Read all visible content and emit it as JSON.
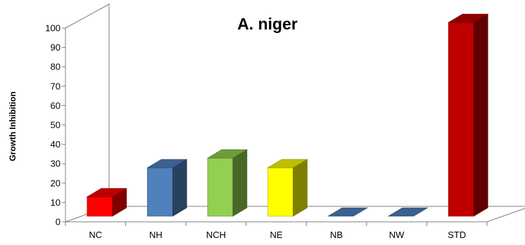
{
  "chart_data": {
    "type": "bar",
    "title": "A. niger",
    "xlabel": "",
    "ylabel": "Growth Inhibition",
    "categories": [
      "NC",
      "NH",
      "NCH",
      "NE",
      "NB",
      "NW",
      "STD"
    ],
    "series": [
      {
        "values": [
          10,
          25,
          30,
          25,
          0,
          0,
          100
        ]
      }
    ],
    "ylim": [
      0,
      100
    ],
    "yticks": [
      0,
      10,
      20,
      30,
      40,
      50,
      60,
      70,
      80,
      90,
      100
    ],
    "grid": false,
    "legend": "none",
    "colors": [
      "#ff0000",
      "#4f81bd",
      "#92d050",
      "#ffff00",
      "#4f81bd",
      "#4f81bd",
      "#c00000"
    ]
  }
}
